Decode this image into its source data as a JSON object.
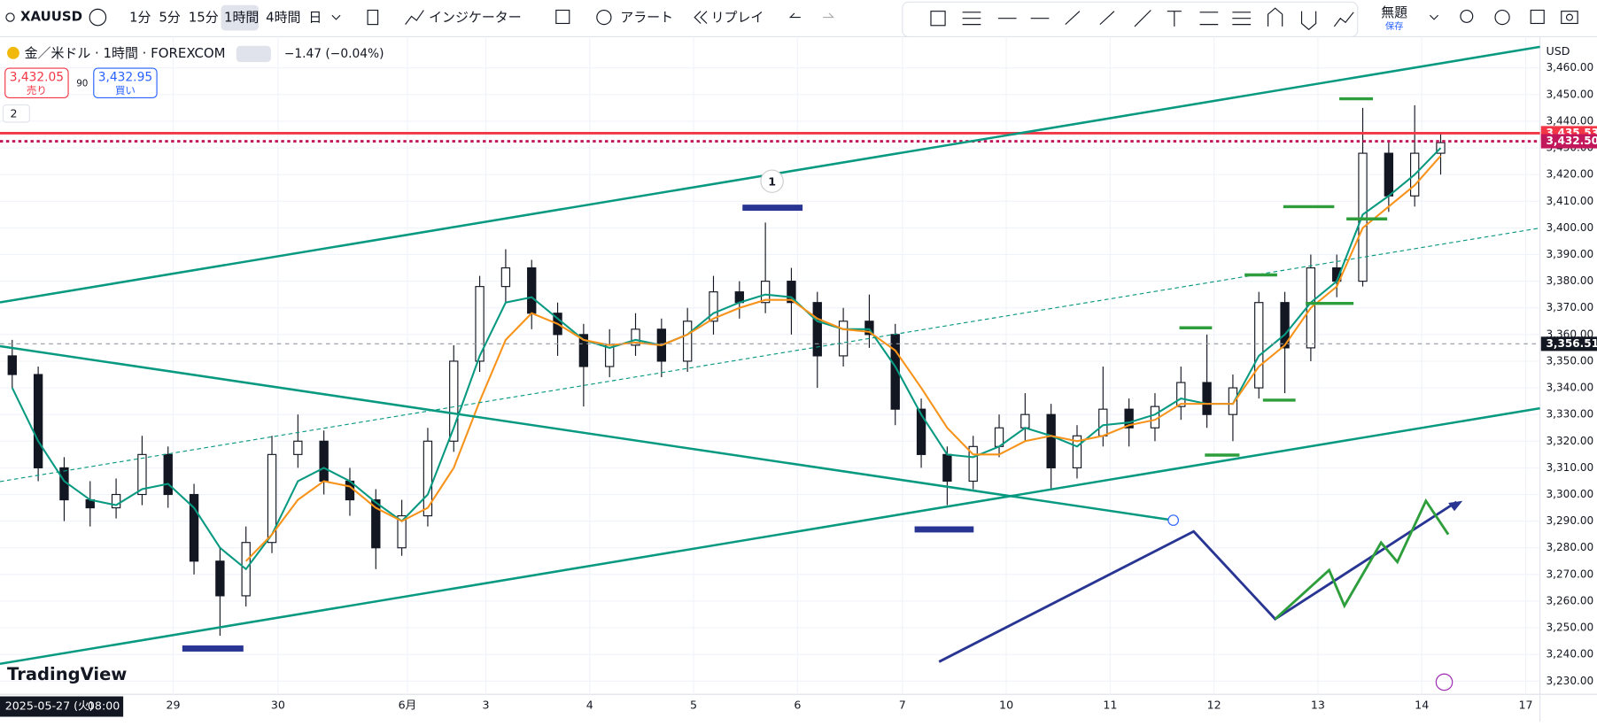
{
  "toolbar": {
    "symbol": "XAUUSD",
    "intervals": [
      "1分",
      "5分",
      "15分",
      "1時間",
      "4時間",
      "日"
    ],
    "indicators": "インジケーター",
    "alert": "アラート",
    "replay": "リプレイ",
    "layout_name": "無題",
    "layout_state": "保存"
  },
  "legend": {
    "title": "金／米ドル · 1時間 · FOREXCOM",
    "change": "−1.47 (−0.04%)",
    "sell_price": "3,432.05",
    "sell": "売り",
    "spread": "90",
    "buy_price": "3,432.95",
    "buy": "買い",
    "collapsed_count": "2"
  },
  "marker": "1",
  "brand": "TradingView",
  "currency": "USD",
  "time_axis": {
    "start_date": "2025-05-27 (火)",
    "start_time": "08:00",
    "labels": [
      "29",
      "30",
      "6月",
      "3",
      "4",
      "5",
      "6",
      "7",
      "10",
      "11",
      "12",
      "13",
      "14",
      "17"
    ]
  },
  "chart_data": {
    "type": "candlestick",
    "ylim": [
      3225.8,
      3470.2
    ],
    "yticks": [
      {
        "value": 3230,
        "label": "3,230.00"
      },
      {
        "value": 3240,
        "label": "3,240.00"
      },
      {
        "value": 3250,
        "label": "3,250.00"
      },
      {
        "value": 3260,
        "label": "3,260.00"
      },
      {
        "value": 3270,
        "label": "3,270.00"
      },
      {
        "value": 3280,
        "label": "3,280.00"
      },
      {
        "value": 3290,
        "label": "3,290.00"
      },
      {
        "value": 3300,
        "label": "3,300.00"
      },
      {
        "value": 3310,
        "label": "3,310.00"
      },
      {
        "value": 3320,
        "label": "3,320.00"
      },
      {
        "value": 3330,
        "label": "3,330.00"
      },
      {
        "value": 3340,
        "label": "3,340.00"
      },
      {
        "value": 3350,
        "label": "3,350.00"
      },
      {
        "value": 3360,
        "label": "3,360.00"
      },
      {
        "value": 3370,
        "label": "3,370.00"
      },
      {
        "value": 3380,
        "label": "3,380.00"
      },
      {
        "value": 3390,
        "label": "3,390.00"
      },
      {
        "value": 3400,
        "label": "3,400.00"
      },
      {
        "value": 3410,
        "label": "3,410.00"
      },
      {
        "value": 3420,
        "label": "3,420.00"
      },
      {
        "value": 3430,
        "label": "3,430.00"
      },
      {
        "value": 3440,
        "label": "3,440.00"
      },
      {
        "value": 3450,
        "label": "3,450.00"
      },
      {
        "value": 3460,
        "label": "3,460.00"
      }
    ],
    "candles": [
      [
        3352,
        3358,
        3340,
        3345
      ],
      [
        3345,
        3348,
        3305,
        3310
      ],
      [
        3310,
        3314,
        3290,
        3298
      ],
      [
        3298,
        3305,
        3288,
        3295
      ],
      [
        3295,
        3306,
        3291,
        3300
      ],
      [
        3300,
        3322,
        3296,
        3315
      ],
      [
        3315,
        3318,
        3295,
        3300
      ],
      [
        3300,
        3304,
        3270,
        3275
      ],
      [
        3275,
        3280,
        3247,
        3262
      ],
      [
        3262,
        3288,
        3258,
        3282
      ],
      [
        3282,
        3322,
        3278,
        3315
      ],
      [
        3315,
        3330,
        3310,
        3320
      ],
      [
        3320,
        3324,
        3300,
        3305
      ],
      [
        3305,
        3310,
        3292,
        3298
      ],
      [
        3298,
        3302,
        3272,
        3280
      ],
      [
        3280,
        3298,
        3277,
        3292
      ],
      [
        3292,
        3325,
        3288,
        3320
      ],
      [
        3320,
        3356,
        3316,
        3350
      ],
      [
        3350,
        3382,
        3346,
        3378
      ],
      [
        3378,
        3392,
        3372,
        3385
      ],
      [
        3385,
        3388,
        3362,
        3368
      ],
      [
        3368,
        3372,
        3352,
        3360
      ],
      [
        3360,
        3364,
        3333,
        3348
      ],
      [
        3348,
        3362,
        3344,
        3356
      ],
      [
        3356,
        3368,
        3352,
        3362
      ],
      [
        3362,
        3366,
        3344,
        3350
      ],
      [
        3350,
        3370,
        3346,
        3365
      ],
      [
        3365,
        3382,
        3360,
        3376
      ],
      [
        3376,
        3380,
        3366,
        3372
      ],
      [
        3372,
        3402,
        3368,
        3380
      ],
      [
        3380,
        3385,
        3360,
        3372
      ],
      [
        3372,
        3376,
        3340,
        3352
      ],
      [
        3352,
        3370,
        3348,
        3365
      ],
      [
        3365,
        3375,
        3355,
        3360
      ],
      [
        3360,
        3364,
        3326,
        3332
      ],
      [
        3332,
        3336,
        3310,
        3315
      ],
      [
        3315,
        3318,
        3296,
        3305
      ],
      [
        3305,
        3322,
        3302,
        3318
      ],
      [
        3318,
        3330,
        3314,
        3325
      ],
      [
        3325,
        3338,
        3320,
        3330
      ],
      [
        3330,
        3334,
        3302,
        3310
      ],
      [
        3310,
        3326,
        3306,
        3322
      ],
      [
        3322,
        3348,
        3318,
        3332
      ],
      [
        3332,
        3336,
        3318,
        3325
      ],
      [
        3325,
        3338,
        3320,
        3333
      ],
      [
        3333,
        3348,
        3328,
        3342
      ],
      [
        3342,
        3360,
        3325,
        3330
      ],
      [
        3330,
        3345,
        3320,
        3340
      ],
      [
        3340,
        3376,
        3336,
        3372
      ],
      [
        3372,
        3376,
        3338,
        3355
      ],
      [
        3355,
        3390,
        3350,
        3385
      ],
      [
        3385,
        3390,
        3374,
        3380
      ],
      [
        3380,
        3445,
        3378,
        3428
      ],
      [
        3428,
        3432,
        3406,
        3412
      ],
      [
        3412,
        3446,
        3408,
        3428
      ],
      [
        3428,
        3436,
        3420,
        3432
      ]
    ],
    "series": [
      {
        "name": "MA fast",
        "color": "#089981",
        "values": [
          3340,
          3320,
          3305,
          3298,
          3296,
          3302,
          3304,
          3295,
          3280,
          3272,
          3285,
          3305,
          3310,
          3305,
          3297,
          3290,
          3300,
          3325,
          3352,
          3372,
          3374,
          3366,
          3358,
          3355,
          3358,
          3356,
          3360,
          3368,
          3372,
          3375,
          3374,
          3365,
          3362,
          3362,
          3348,
          3330,
          3315,
          3314,
          3318,
          3325,
          3322,
          3318,
          3326,
          3327,
          3330,
          3336,
          3334,
          3334,
          3352,
          3360,
          3372,
          3380,
          3405,
          3412,
          3420,
          3430
        ]
      },
      {
        "name": "MA slow",
        "color": "#f7931a",
        "values": [
          null,
          null,
          null,
          null,
          null,
          null,
          null,
          null,
          null,
          3275,
          3285,
          3298,
          3305,
          3303,
          3295,
          3290,
          3295,
          3310,
          3335,
          3358,
          3368,
          3364,
          3358,
          3356,
          3357,
          3356,
          3360,
          3366,
          3370,
          3373,
          3373,
          3366,
          3362,
          3361,
          3354,
          3340,
          3325,
          3315,
          3315,
          3320,
          3322,
          3320,
          3322,
          3326,
          3328,
          3334,
          3334,
          3334,
          3348,
          3356,
          3370,
          3378,
          3400,
          3408,
          3416,
          3427
        ]
      }
    ],
    "price_lines": [
      {
        "value": 3435.53,
        "label": "3,435.53",
        "color": "#f23645",
        "style": "solid"
      },
      {
        "value": 3432.5,
        "label": "3,432.50",
        "color": "#c2185b",
        "style": "dotted"
      },
      {
        "value": 3356.51,
        "label": "3,356.51",
        "color": "#131722",
        "style": "dashed"
      }
    ]
  }
}
